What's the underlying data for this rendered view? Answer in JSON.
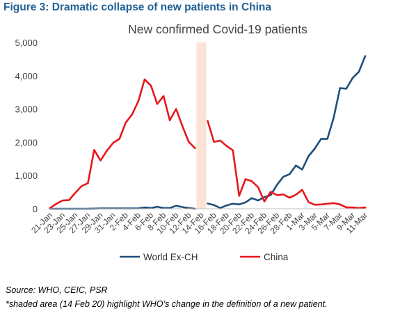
{
  "figure_title": "Figure 3: Dramatic collapse of new patients in China",
  "notes": {
    "source": "Source: WHO, CEIC, PSR",
    "shaded": "*shaded area (14 Feb 20) highlight WHO’s change in the definition of a new patient."
  },
  "chart_data": {
    "type": "line",
    "title": "New confirmed Covid-19 patients",
    "xlabel": "",
    "ylabel": "",
    "ylim": [
      0,
      5000
    ],
    "yticks": [
      0,
      1000,
      2000,
      3000,
      4000,
      5000
    ],
    "ytick_labels": [
      "0",
      "1,000",
      "2,000",
      "3,000",
      "4,000",
      "5,000"
    ],
    "grid": false,
    "legend_position": "bottom",
    "x": [
      "21-Jan",
      "22-Jan",
      "23-Jan",
      "24-Jan",
      "25-Jan",
      "26-Jan",
      "27-Jan",
      "28-Jan",
      "29-Jan",
      "30-Jan",
      "31-Jan",
      "1-Feb",
      "2-Feb",
      "3-Feb",
      "4-Feb",
      "5-Feb",
      "6-Feb",
      "7-Feb",
      "8-Feb",
      "9-Feb",
      "10-Feb",
      "11-Feb",
      "12-Feb",
      "13-Feb",
      "14-Feb",
      "15-Feb",
      "16-Feb",
      "17-Feb",
      "18-Feb",
      "19-Feb",
      "20-Feb",
      "21-Feb",
      "22-Feb",
      "23-Feb",
      "24-Feb",
      "25-Feb",
      "26-Feb",
      "27-Feb",
      "28-Feb",
      "29-Feb",
      "1-Mar",
      "2-Mar",
      "3-Mar",
      "4-Mar",
      "5-Mar",
      "6-Mar",
      "7-Mar",
      "8-Mar",
      "9-Mar",
      "10-Mar",
      "11-Mar"
    ],
    "x_tick_labels": [
      "21-Jan",
      "23-Jan",
      "25-Jan",
      "27-Jan",
      "29-Jan",
      "31-Jan",
      "2-Feb",
      "4-Feb",
      "6-Feb",
      "8-Feb",
      "10-Feb",
      "12-Feb",
      "14-Feb",
      "16-Feb",
      "18-Feb",
      "20-Feb",
      "22-Feb",
      "24-Feb",
      "26-Feb",
      "28-Feb",
      "1-Mar",
      "3-Mar",
      "5-Mar",
      "7-Mar",
      "9-Mar",
      "11-Mar"
    ],
    "shaded_x": "14-Feb",
    "series": [
      {
        "name": "World Ex-CH",
        "color": "#1f4e79",
        "values": [
          0,
          0,
          0,
          0,
          0,
          0,
          0,
          5,
          10,
          10,
          10,
          10,
          10,
          10,
          10,
          40,
          20,
          60,
          20,
          20,
          90,
          50,
          20,
          0,
          null,
          160,
          110,
          20,
          100,
          150,
          130,
          190,
          320,
          250,
          350,
          410,
          720,
          960,
          1040,
          1300,
          1180,
          1580,
          1810,
          2100,
          2100,
          2740,
          3630,
          3610,
          3930,
          4120,
          4590
        ]
      },
      {
        "name": "China",
        "color": "#e6181b",
        "values": [
          20,
          150,
          250,
          260,
          480,
          680,
          770,
          1770,
          1450,
          1740,
          1980,
          2100,
          2590,
          2830,
          3230,
          3890,
          3700,
          3150,
          3390,
          2660,
          3000,
          2480,
          2010,
          1820,
          null,
          2640,
          2010,
          2050,
          1890,
          1760,
          390,
          890,
          830,
          650,
          220,
          510,
          410,
          430,
          330,
          420,
          570,
          200,
          120,
          130,
          150,
          170,
          130,
          40,
          40,
          20,
          40
        ]
      }
    ]
  }
}
